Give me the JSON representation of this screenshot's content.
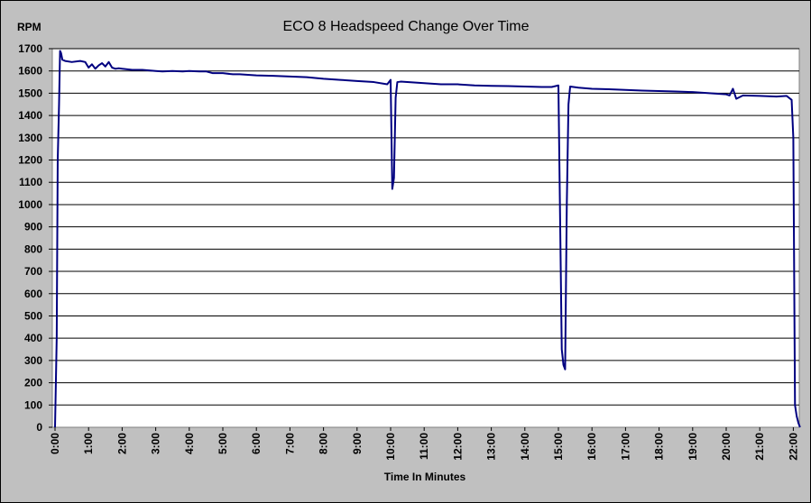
{
  "chart_data": {
    "type": "line",
    "title": "ECO 8 Headspeed Change Over Time",
    "ylabel": "RPM",
    "xlabel": "Time In Minutes",
    "ylim": [
      0,
      1700
    ],
    "xlim": [
      0,
      22
    ],
    "grid": true,
    "legend": "none",
    "y_ticks": [
      0,
      100,
      200,
      300,
      400,
      500,
      600,
      700,
      800,
      900,
      1000,
      1100,
      1200,
      1300,
      1400,
      1500,
      1600,
      1700
    ],
    "x_tick_labels": [
      "0:00",
      "1:00",
      "2:00",
      "3:00",
      "4:00",
      "5:00",
      "6:00",
      "7:00",
      "8:00",
      "9:00",
      "10:00",
      "11:00",
      "12:00",
      "13:00",
      "14:00",
      "15:00",
      "16:00",
      "17:00",
      "18:00",
      "19:00",
      "20:00",
      "21:00",
      "22:00"
    ],
    "colors": {
      "line": "#000080",
      "plot_bg": "#ffffff",
      "chart_bg": "#c0c0c0"
    },
    "series": [
      {
        "x": [
          0.0,
          0.05,
          0.08,
          0.12,
          0.15,
          0.18,
          0.22,
          0.3,
          0.5,
          0.75,
          0.9,
          1.0,
          1.1,
          1.2,
          1.3,
          1.4,
          1.5,
          1.6,
          1.7,
          1.8,
          1.9,
          2.0,
          2.3,
          2.6,
          3.0,
          3.2,
          3.5,
          3.8,
          4.0,
          4.3,
          4.5,
          4.7,
          5.0,
          5.3,
          5.5,
          6.0,
          6.5,
          7.0,
          7.5,
          8.0,
          8.5,
          9.0,
          9.5,
          9.9,
          10.0,
          10.05,
          10.1,
          10.15,
          10.2,
          10.3,
          10.5,
          11.0,
          11.5,
          12.0,
          12.5,
          13.0,
          13.5,
          14.0,
          14.5,
          14.8,
          15.0,
          15.1,
          15.15,
          15.2,
          15.25,
          15.3,
          15.35,
          15.45,
          15.6,
          16.0,
          16.5,
          17.0,
          17.5,
          18.0,
          18.5,
          19.0,
          19.5,
          20.0,
          20.1,
          20.2,
          20.3,
          20.5,
          21.0,
          21.5,
          21.8,
          21.95,
          22.0,
          22.05,
          22.1,
          22.15,
          22.2
        ],
        "y": [
          0,
          400,
          1200,
          1450,
          1690,
          1680,
          1650,
          1645,
          1640,
          1645,
          1640,
          1615,
          1630,
          1610,
          1625,
          1635,
          1620,
          1640,
          1615,
          1610,
          1612,
          1610,
          1605,
          1605,
          1600,
          1598,
          1600,
          1598,
          1600,
          1598,
          1598,
          1590,
          1590,
          1585,
          1585,
          1580,
          1578,
          1575,
          1572,
          1565,
          1560,
          1555,
          1550,
          1540,
          1560,
          1070,
          1120,
          1480,
          1550,
          1552,
          1550,
          1545,
          1540,
          1540,
          1535,
          1533,
          1532,
          1530,
          1528,
          1528,
          1535,
          350,
          280,
          260,
          1000,
          1450,
          1530,
          1528,
          1525,
          1520,
          1518,
          1515,
          1512,
          1510,
          1508,
          1505,
          1500,
          1495,
          1490,
          1520,
          1475,
          1490,
          1488,
          1485,
          1488,
          1470,
          1300,
          100,
          50,
          20,
          0
        ]
      }
    ]
  }
}
